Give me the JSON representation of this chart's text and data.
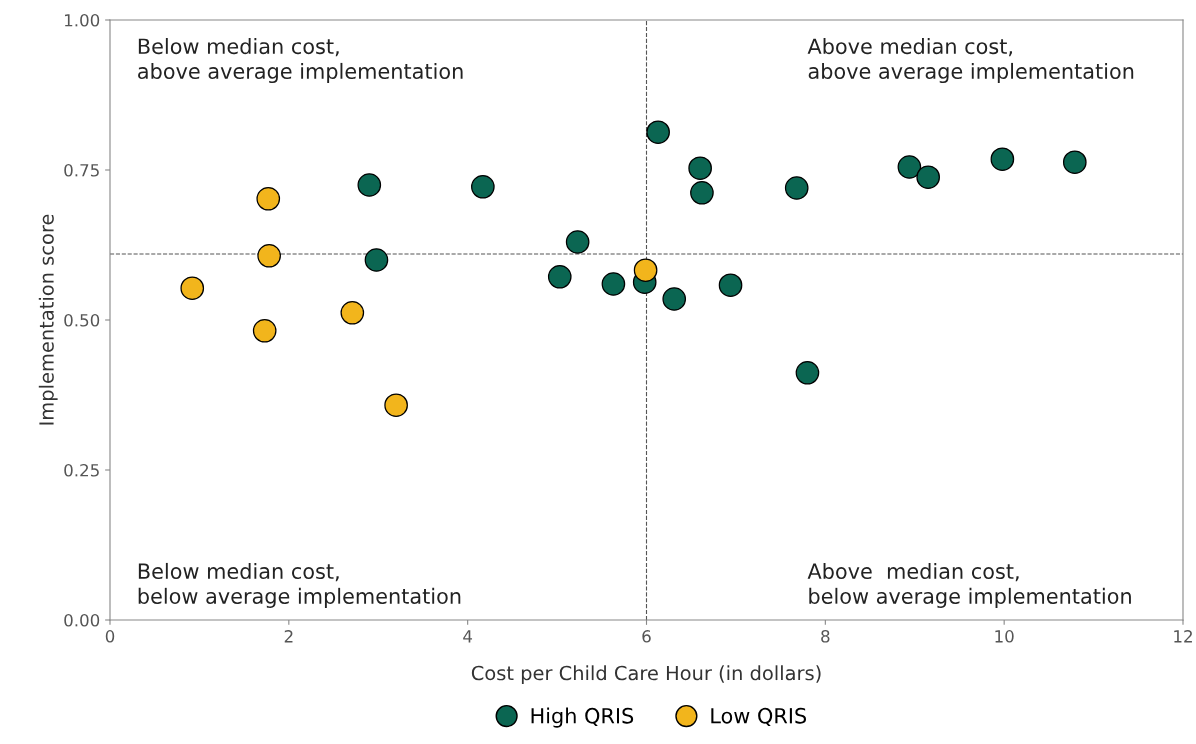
{
  "chart_data": {
    "type": "scatter",
    "xlabel": "Cost per Child Care Hour (in dollars)",
    "ylabel": "Implementation score",
    "xlim": [
      0,
      12
    ],
    "xticks": [
      0,
      2,
      4,
      6,
      8,
      10,
      12
    ],
    "ylim": [
      0,
      1
    ],
    "yticks": [
      {
        "value": 0,
        "label": "0.00"
      },
      {
        "value": 0.25,
        "label": "0.25"
      },
      {
        "value": 0.5,
        "label": "0.50"
      },
      {
        "value": 0.75,
        "label": "0.75"
      },
      {
        "value": 1,
        "label": "1.00"
      }
    ],
    "grid": false,
    "legend": "bottom",
    "marker": "circle",
    "series": [
      {
        "name": "High QRIS",
        "color": "#0b6652",
        "x": [
          2.9,
          4.17,
          2.98,
          5.23,
          5.03,
          5.63,
          5.98,
          6.13,
          6.31,
          6.6,
          6.62,
          6.94,
          7.68,
          7.8,
          8.94,
          9.15,
          9.98,
          10.79
        ],
        "values": [
          0.725,
          0.722,
          0.6,
          0.63,
          0.572,
          0.56,
          0.563,
          0.813,
          0.535,
          0.753,
          0.712,
          0.558,
          0.72,
          0.412,
          0.755,
          0.738,
          0.768,
          0.763
        ]
      },
      {
        "name": "Low QRIS",
        "color": "#f2b51c",
        "x": [
          0.92,
          1.77,
          1.78,
          1.73,
          2.71,
          3.2,
          5.99
        ],
        "values": [
          0.553,
          0.702,
          0.607,
          0.482,
          0.512,
          0.358,
          0.583
        ]
      }
    ],
    "ref_lines": [
      {
        "axis": "x",
        "value": 6,
        "label": null,
        "color": "#555555",
        "line_style": "dashed"
      },
      {
        "axis": "y",
        "value": 0.61,
        "label": null,
        "color": "#555555",
        "line_style": "dashed"
      }
    ],
    "annotations": [
      "Below median cost,\nabove average implementation",
      "Above median cost,\nabove average implementation",
      "Below median cost,\nbelow average implementation",
      "Above  median cost,\nbelow average implementation"
    ]
  }
}
